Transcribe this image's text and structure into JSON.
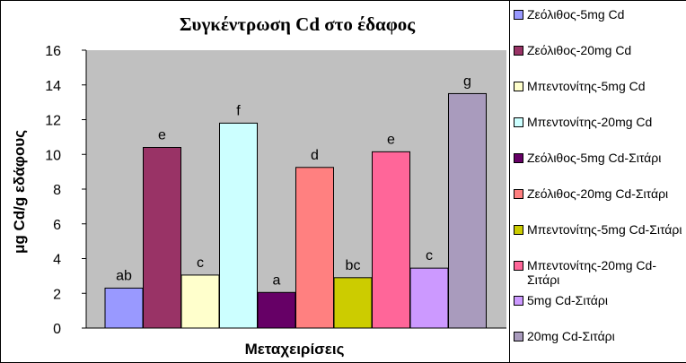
{
  "chart_data": {
    "type": "bar",
    "title": "Συγκέντρωση Cd στο έδαφος",
    "xlabel": "Μεταχειρίσεις",
    "ylabel": "μg Cd/g εδάφους",
    "ylim": [
      0,
      16
    ],
    "yticks": [
      0,
      2,
      4,
      6,
      8,
      10,
      12,
      14,
      16
    ],
    "grid": false,
    "legend_position": "right",
    "series": [
      {
        "name": "Ζεόλιθος-5mg Cd",
        "value": 2.3,
        "label": "ab",
        "color": "#9999ff"
      },
      {
        "name": "Ζεόλιθος-20mg Cd",
        "value": 10.4,
        "label": "e",
        "color": "#993366"
      },
      {
        "name": "Μπεντονίτης-5mg Cd",
        "value": 3.05,
        "label": "c",
        "color": "#ffffcc"
      },
      {
        "name": "Μπεντονίτης-20mg Cd",
        "value": 11.8,
        "label": "f",
        "color": "#ccffff"
      },
      {
        "name": "Ζεόλιθος-5mg Cd-Σιτάρι",
        "value": 2.05,
        "label": "a",
        "color": "#660066"
      },
      {
        "name": "Ζεόλιθος-20mg Cd-Σιτάρι",
        "value": 9.25,
        "label": "d",
        "color": "#ff8080"
      },
      {
        "name": "Μπεντονίτης-5mg Cd-Σιτάρι",
        "value": 2.9,
        "label": "bc",
        "color": "#cccc00"
      },
      {
        "name": "Μπεντονίτης-20mg Cd-Σιτάρι",
        "value": 10.15,
        "label": "e",
        "color": "#ff6699"
      },
      {
        "name": "5mg Cd-Σιτάρι",
        "value": 3.45,
        "label": "c",
        "color": "#cc99ff"
      },
      {
        "name": "20mg Cd-Σιτάρι",
        "value": 13.5,
        "label": "g",
        "color": "#a99bbd"
      }
    ],
    "colors": {
      "plot_background": "#c0c0c0",
      "frame": "#000000"
    }
  }
}
